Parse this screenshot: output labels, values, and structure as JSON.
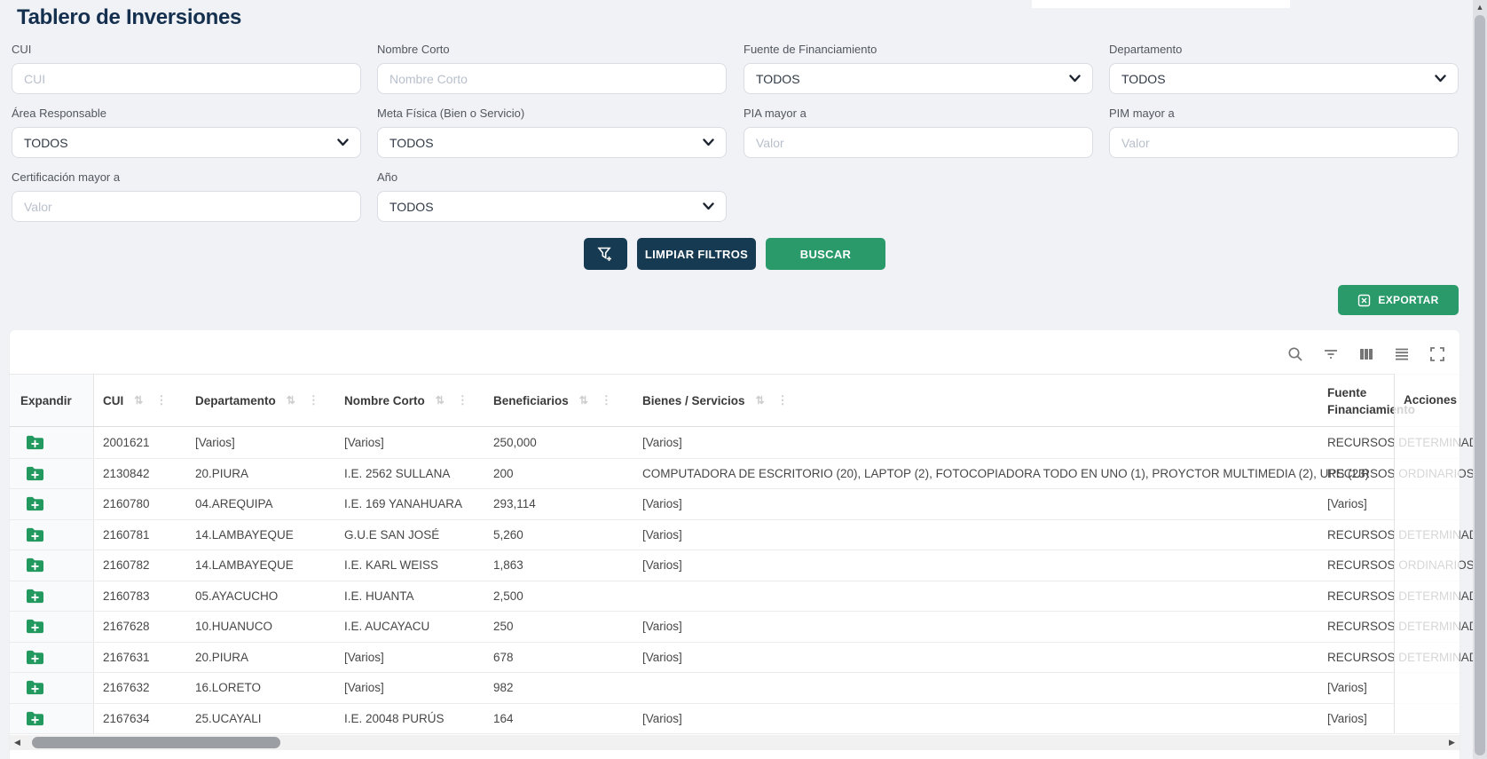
{
  "title": "Tablero de Inversiones",
  "colors": {
    "navy": "#163a52",
    "green": "#2b9a6a",
    "folder_green": "#22995e",
    "title_navy": "#14304e"
  },
  "filters": [
    {
      "name": "cui",
      "label": "CUI",
      "type": "input",
      "placeholder": "CUI"
    },
    {
      "name": "nombre-corto",
      "label": "Nombre Corto",
      "type": "input",
      "placeholder": "Nombre Corto"
    },
    {
      "name": "fuente-financiamiento",
      "label": "Fuente de Financiamiento",
      "type": "select",
      "value": "TODOS"
    },
    {
      "name": "departamento",
      "label": "Departamento",
      "type": "select",
      "value": "TODOS"
    },
    {
      "name": "area-responsable",
      "label": "Área Responsable",
      "type": "select",
      "value": "TODOS"
    },
    {
      "name": "meta-fisica",
      "label": "Meta Física (Bien o Servicio)",
      "type": "select",
      "value": "TODOS"
    },
    {
      "name": "pia-mayor-a",
      "label": "PIA mayor a",
      "type": "input",
      "placeholder": "Valor"
    },
    {
      "name": "pim-mayor-a",
      "label": "PIM mayor a",
      "type": "input",
      "placeholder": "Valor"
    },
    {
      "name": "certificacion-mayor-a",
      "label": "Certificación mayor a",
      "type": "input",
      "placeholder": "Valor"
    },
    {
      "name": "anio",
      "label": "Año",
      "type": "select",
      "value": "TODOS"
    }
  ],
  "buttons": {
    "limpiar_filtros": "LIMPIAR FILTROS",
    "buscar": "BUSCAR",
    "exportar": "EXPORTAR"
  },
  "icons": {
    "filter_add_button": "funnel-plus",
    "export_button": "excel-sheet",
    "toolbar": [
      "search",
      "filter",
      "columns",
      "density",
      "fullscreen"
    ],
    "row_expand": "folder-plus",
    "header_sort": "up-down-arrows",
    "header_menu": "vertical-dots"
  },
  "table": {
    "columns": [
      {
        "label": "Expandir",
        "sortable": false
      },
      {
        "label": "CUI",
        "sortable": true
      },
      {
        "label": "Departamento",
        "sortable": true
      },
      {
        "label": "Nombre Corto",
        "sortable": true
      },
      {
        "label": "Beneficiarios",
        "sortable": true
      },
      {
        "label": "Bienes / Servicios",
        "sortable": true
      },
      {
        "label": "Fuente Financiamiento",
        "sortable": false
      },
      {
        "label": "Acciones",
        "sortable": false
      }
    ],
    "rows": [
      {
        "cui": "2001621",
        "departamento": "[Varios]",
        "nombre_corto": "[Varios]",
        "beneficiarios": "250,000",
        "bienes_servicios": "[Varios]",
        "fuente_financiamiento": "RECURSOS DETERMINADOS"
      },
      {
        "cui": "2130842",
        "departamento": "20.PIURA",
        "nombre_corto": "I.E. 2562 SULLANA",
        "beneficiarios": "200",
        "bienes_servicios": "COMPUTADORA DE ESCRITORIO (20), LAPTOP (2), FOTOCOPIADORA TODO EN UNO (1), PROYCTOR MULTIMEDIA (2), UPS (23)",
        "fuente_financiamiento": "RECURSOS ORDINARIOS"
      },
      {
        "cui": "2160780",
        "departamento": "04.AREQUIPA",
        "nombre_corto": "I.E. 169 YANAHUARA",
        "beneficiarios": "293,114",
        "bienes_servicios": "[Varios]",
        "fuente_financiamiento": "[Varios]"
      },
      {
        "cui": "2160781",
        "departamento": "14.LAMBAYEQUE",
        "nombre_corto": "G.U.E SAN JOSÉ",
        "beneficiarios": "5,260",
        "bienes_servicios": "[Varios]",
        "fuente_financiamiento": "RECURSOS DETERMINADOS"
      },
      {
        "cui": "2160782",
        "departamento": "14.LAMBAYEQUE",
        "nombre_corto": "I.E. KARL WEISS",
        "beneficiarios": "1,863",
        "bienes_servicios": "[Varios]",
        "fuente_financiamiento": "RECURSOS ORDINARIOS"
      },
      {
        "cui": "2160783",
        "departamento": "05.AYACUCHO",
        "nombre_corto": "I.E. HUANTA",
        "beneficiarios": "2,500",
        "bienes_servicios": "",
        "fuente_financiamiento": "RECURSOS DETERMINADOS"
      },
      {
        "cui": "2167628",
        "departamento": "10.HUANUCO",
        "nombre_corto": "I.E. AUCAYACU",
        "beneficiarios": "250",
        "bienes_servicios": "[Varios]",
        "fuente_financiamiento": "RECURSOS DETERMINADOS"
      },
      {
        "cui": "2167631",
        "departamento": "20.PIURA",
        "nombre_corto": "[Varios]",
        "beneficiarios": "678",
        "bienes_servicios": "[Varios]",
        "fuente_financiamiento": "RECURSOS DETERMINADOS"
      },
      {
        "cui": "2167632",
        "departamento": "16.LORETO",
        "nombre_corto": "[Varios]",
        "beneficiarios": "982",
        "bienes_servicios": "",
        "fuente_financiamiento": "[Varios]"
      },
      {
        "cui": "2167634",
        "departamento": "25.UCAYALI",
        "nombre_corto": "I.E. 20048 PURÚS",
        "beneficiarios": "164",
        "bienes_servicios": "[Varios]",
        "fuente_financiamiento": "[Varios]"
      }
    ]
  }
}
